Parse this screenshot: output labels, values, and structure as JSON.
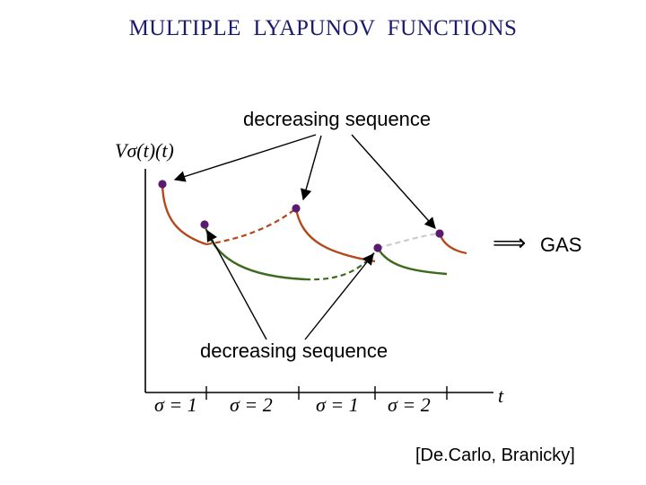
{
  "title": "MULTIPLE  LYAPUNOV  FUNCTIONS",
  "top_label": "decreasing sequence",
  "bottom_label": "decreasing sequence",
  "y_axis_label": "Vσ(t)(t)",
  "x_axis_label": "t",
  "implies_symbol": "⟹",
  "gas_label": "GAS",
  "sigma_labels": [
    "σ = 1",
    "σ = 2",
    "σ = 1",
    "σ = 2"
  ],
  "citation": "[De.Carlo, Branicky]",
  "colors": {
    "mode1_curve": "#b5471b",
    "mode2_curve": "#3d6b1e",
    "switch_point": "#5a1a6e",
    "inactive_dashed": "#cccccc",
    "title": "#1a1a6e"
  }
}
